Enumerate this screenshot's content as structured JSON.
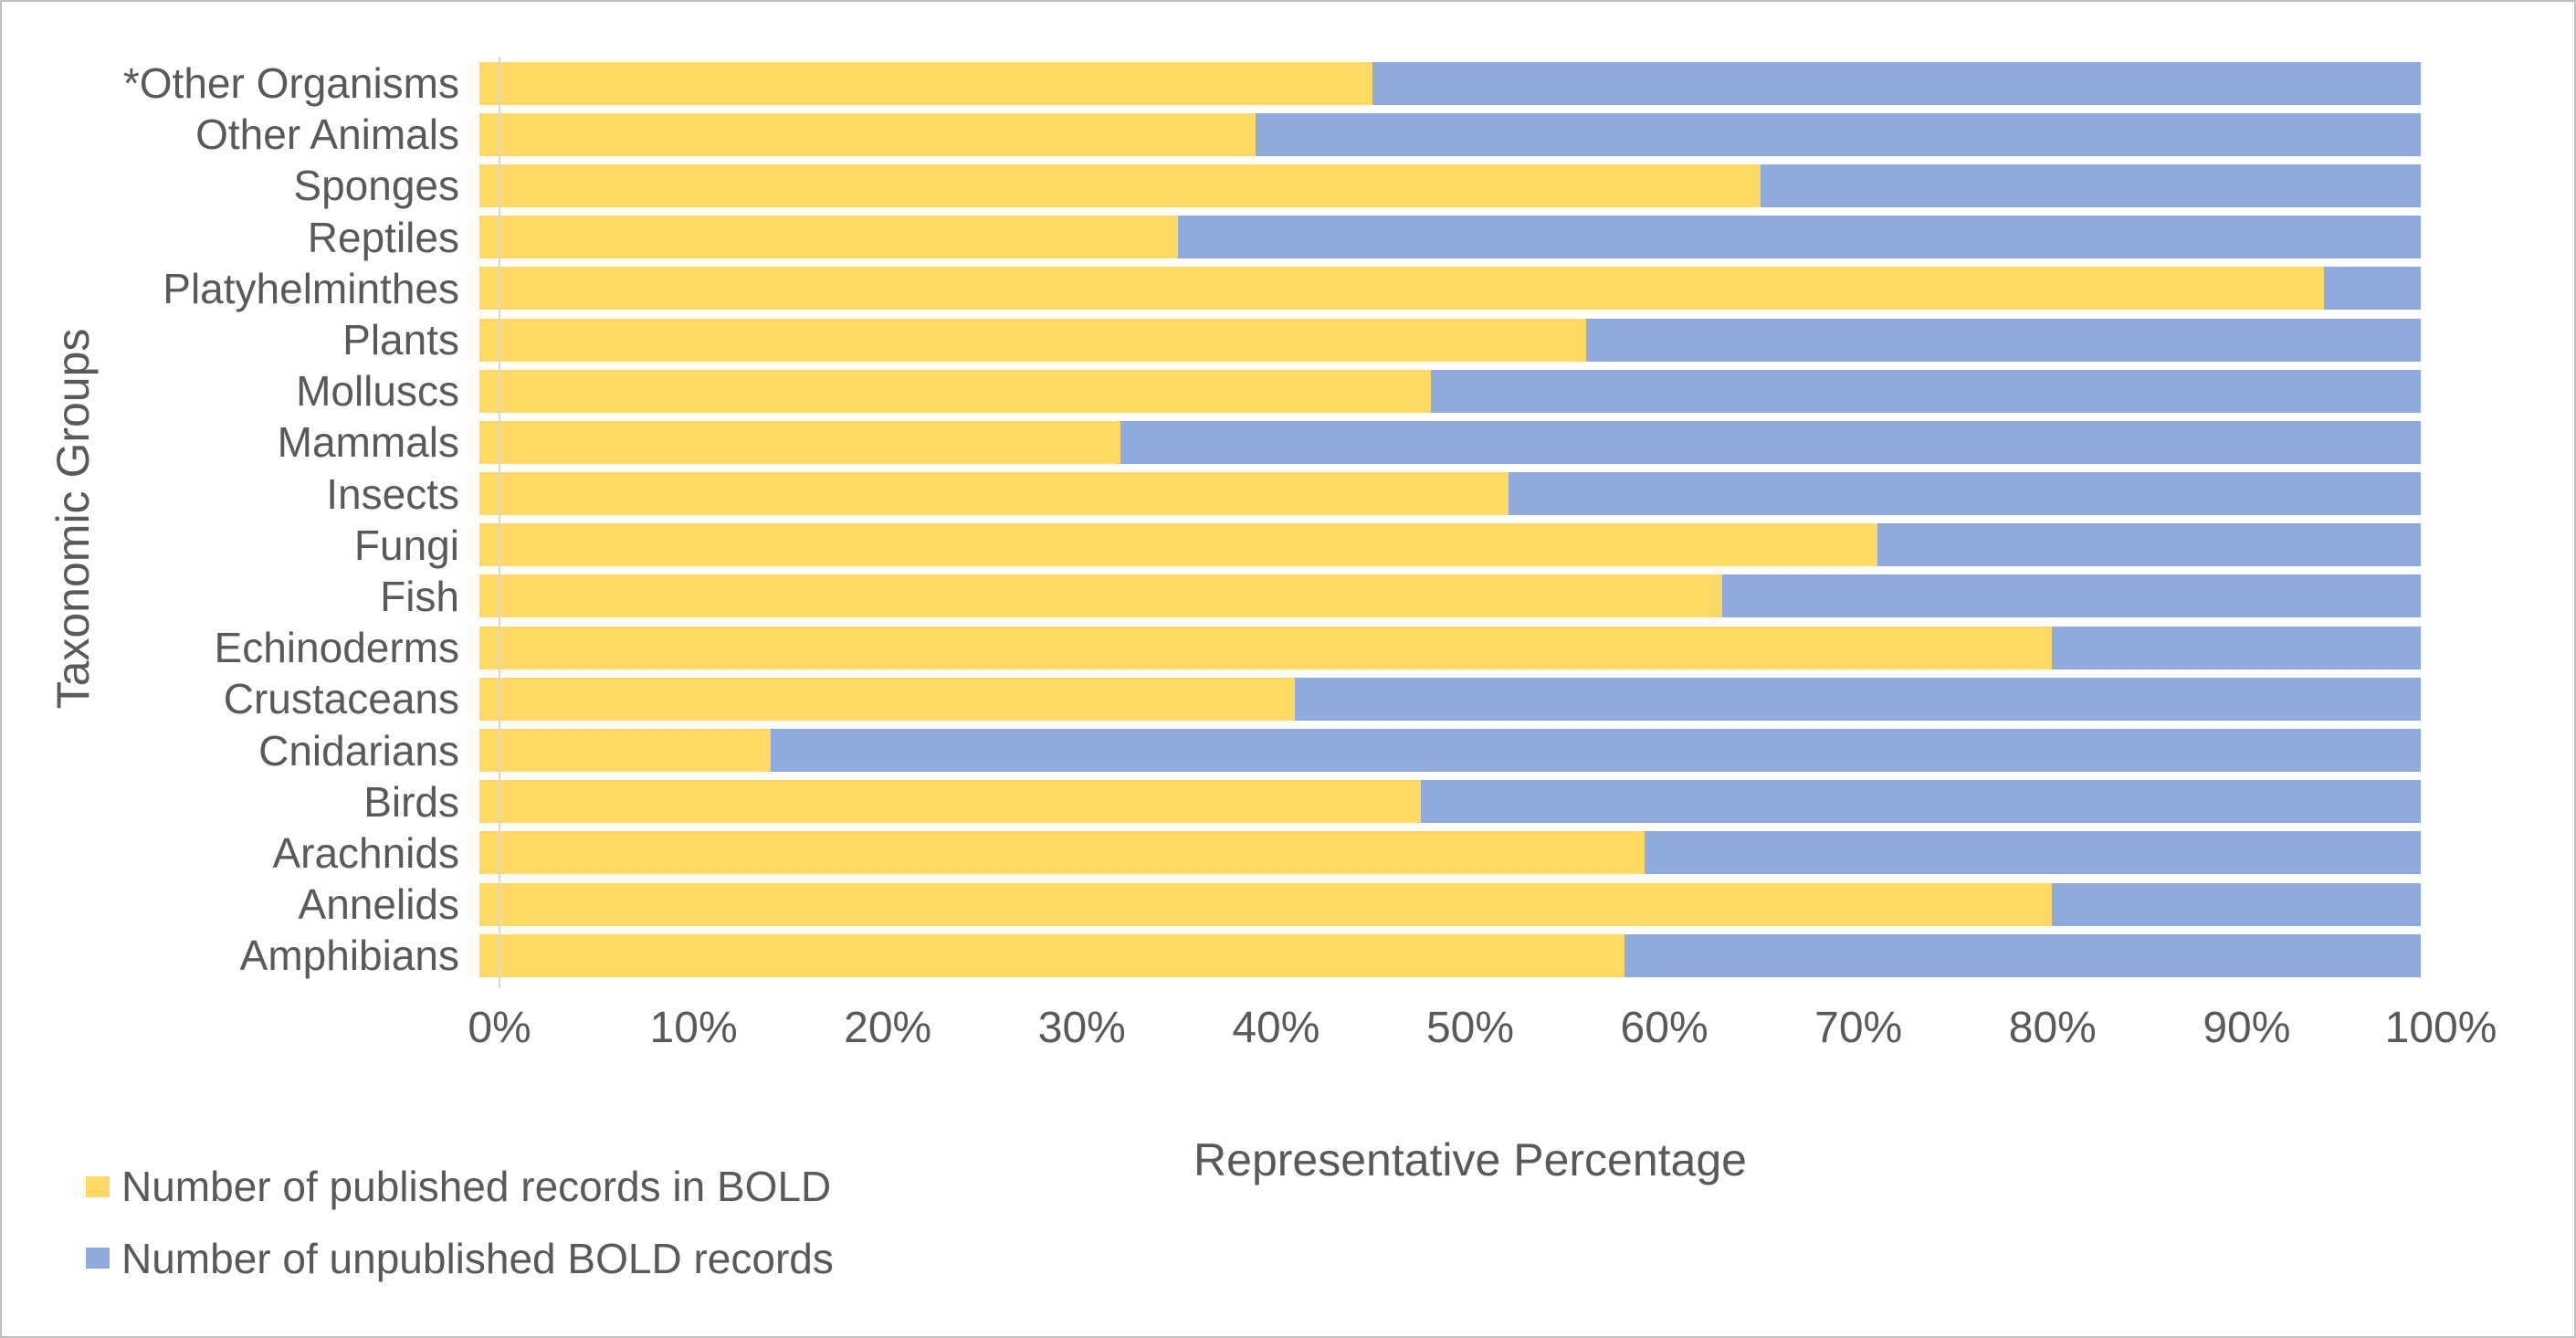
{
  "chart_data": {
    "type": "bar",
    "orientation": "horizontal",
    "stacked": true,
    "percent_stacked": true,
    "title": "",
    "xlabel": "Representative Percentage",
    "ylabel": "Taxonomic Groups",
    "xlim": [
      0,
      100
    ],
    "x_tick_labels": [
      "0%",
      "10%",
      "20%",
      "30%",
      "40%",
      "50%",
      "60%",
      "70%",
      "80%",
      "90%",
      "100%"
    ],
    "grid": false,
    "legend_position": "bottom-left",
    "categories": [
      "*Other Organisms",
      "Other Animals",
      "Sponges",
      "Reptiles",
      "Platyhelminthes",
      "Plants",
      "Molluscs",
      "Mammals",
      "Insects",
      "Fungi",
      "Fish",
      "Echinoderms",
      "Crustaceans",
      "Cnidarians",
      "Birds",
      "Arachnids",
      "Annelids",
      "Amphibians"
    ],
    "series": [
      {
        "name": "Number of published records in BOLD",
        "color": "#FFD966",
        "values": [
          46,
          40,
          66,
          36,
          95,
          57,
          49,
          33,
          53,
          72,
          64,
          81,
          42,
          15,
          48.5,
          60,
          81,
          59
        ]
      },
      {
        "name": "Number of unpublished BOLD records",
        "color": "#8FAADC",
        "values": [
          54,
          60,
          34,
          64,
          5,
          43,
          51,
          67,
          47,
          28,
          36,
          19,
          58,
          85,
          51.5,
          40,
          19,
          41
        ]
      }
    ]
  },
  "colors": {
    "text": "#595959",
    "axis_line": "#D9D9D9",
    "canvas_border": "#BFBFBF",
    "background": "#FFFFFF",
    "published": "#FFD966",
    "unpublished": "#8FAADC"
  }
}
